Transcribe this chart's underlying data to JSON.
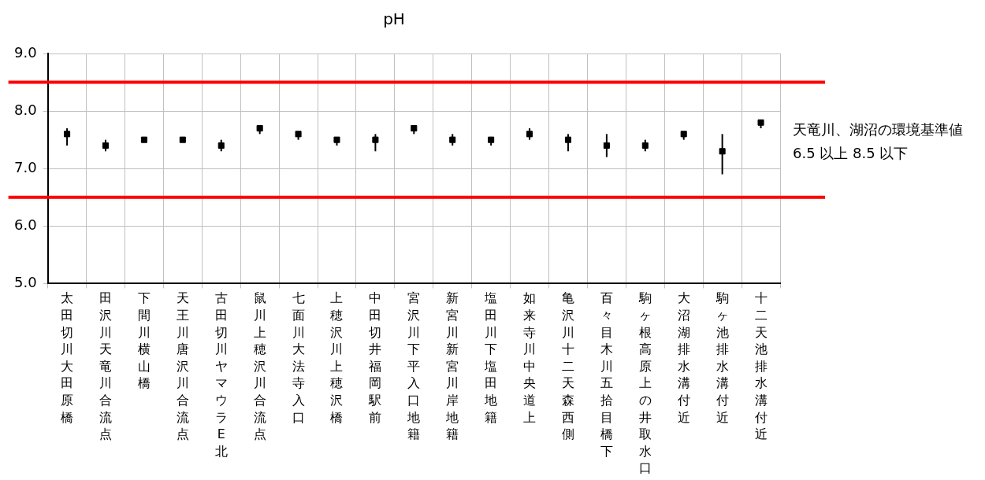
{
  "chart_data": {
    "type": "scatter",
    "title": "pH",
    "categories": [
      "太田切川大田原橋",
      "田沢川天竜川合流点",
      "下間川横山橋",
      "天王川唐沢川合流点",
      "古田切川ヤマウラE北",
      "鼠川上穂沢川合流点",
      "七面川大法寺入口",
      "上穂沢川上穂沢橋",
      "中田切井福岡駅前",
      "宮沢川下平入口地籍",
      "新宮川新宮川岸地籍",
      "塩田川下塩田地籍",
      "如来寺川中央道上",
      "亀沢川十二天森西側",
      "百々目木川五拾目橋下",
      "駒ヶ根高原上の井取水口",
      "大沼湖排水溝付近",
      "駒ヶ池排水溝付近",
      "十二天池排水溝付近"
    ],
    "series": [
      {
        "color": "#000000",
        "values": [
          7.6,
          7.4,
          7.5,
          7.5,
          7.4,
          7.7,
          7.6,
          7.5,
          7.5,
          7.7,
          7.5,
          7.5,
          7.6,
          7.5,
          7.4,
          7.4,
          7.6,
          7.3,
          7.8
        ],
        "errors": [
          [
            7.4,
            7.7
          ],
          [
            7.3,
            7.5
          ],
          null,
          null,
          [
            7.3,
            7.5
          ],
          [
            7.6,
            7.7
          ],
          [
            7.5,
            7.6
          ],
          [
            7.4,
            7.5
          ],
          [
            7.3,
            7.6
          ],
          [
            7.6,
            7.7
          ],
          [
            7.4,
            7.6
          ],
          [
            7.4,
            7.5
          ],
          [
            7.5,
            7.7
          ],
          [
            7.3,
            7.6
          ],
          [
            7.2,
            7.6
          ],
          [
            7.3,
            7.5
          ],
          [
            7.5,
            7.6
          ],
          [
            6.9,
            7.6
          ],
          [
            7.7,
            7.8
          ]
        ]
      }
    ],
    "marker": "square",
    "ylim": [
      5,
      9
    ],
    "yticks": [
      {
        "value": 5,
        "label": "5.0"
      },
      {
        "value": 6,
        "label": "6.0"
      },
      {
        "value": 7,
        "label": "7.0"
      },
      {
        "value": 8,
        "label": "8.0"
      },
      {
        "value": 9,
        "label": "9.0"
      }
    ],
    "grid": true,
    "ref_lines": [
      {
        "axis": "y",
        "value": 8.5,
        "color": "#ff0000"
      },
      {
        "axis": "y",
        "value": 6.5,
        "color": "#ff0000"
      }
    ],
    "annotations": [
      "天竜川、湖沼の環境基準値 6.5 以上 8.5 以下"
    ]
  }
}
